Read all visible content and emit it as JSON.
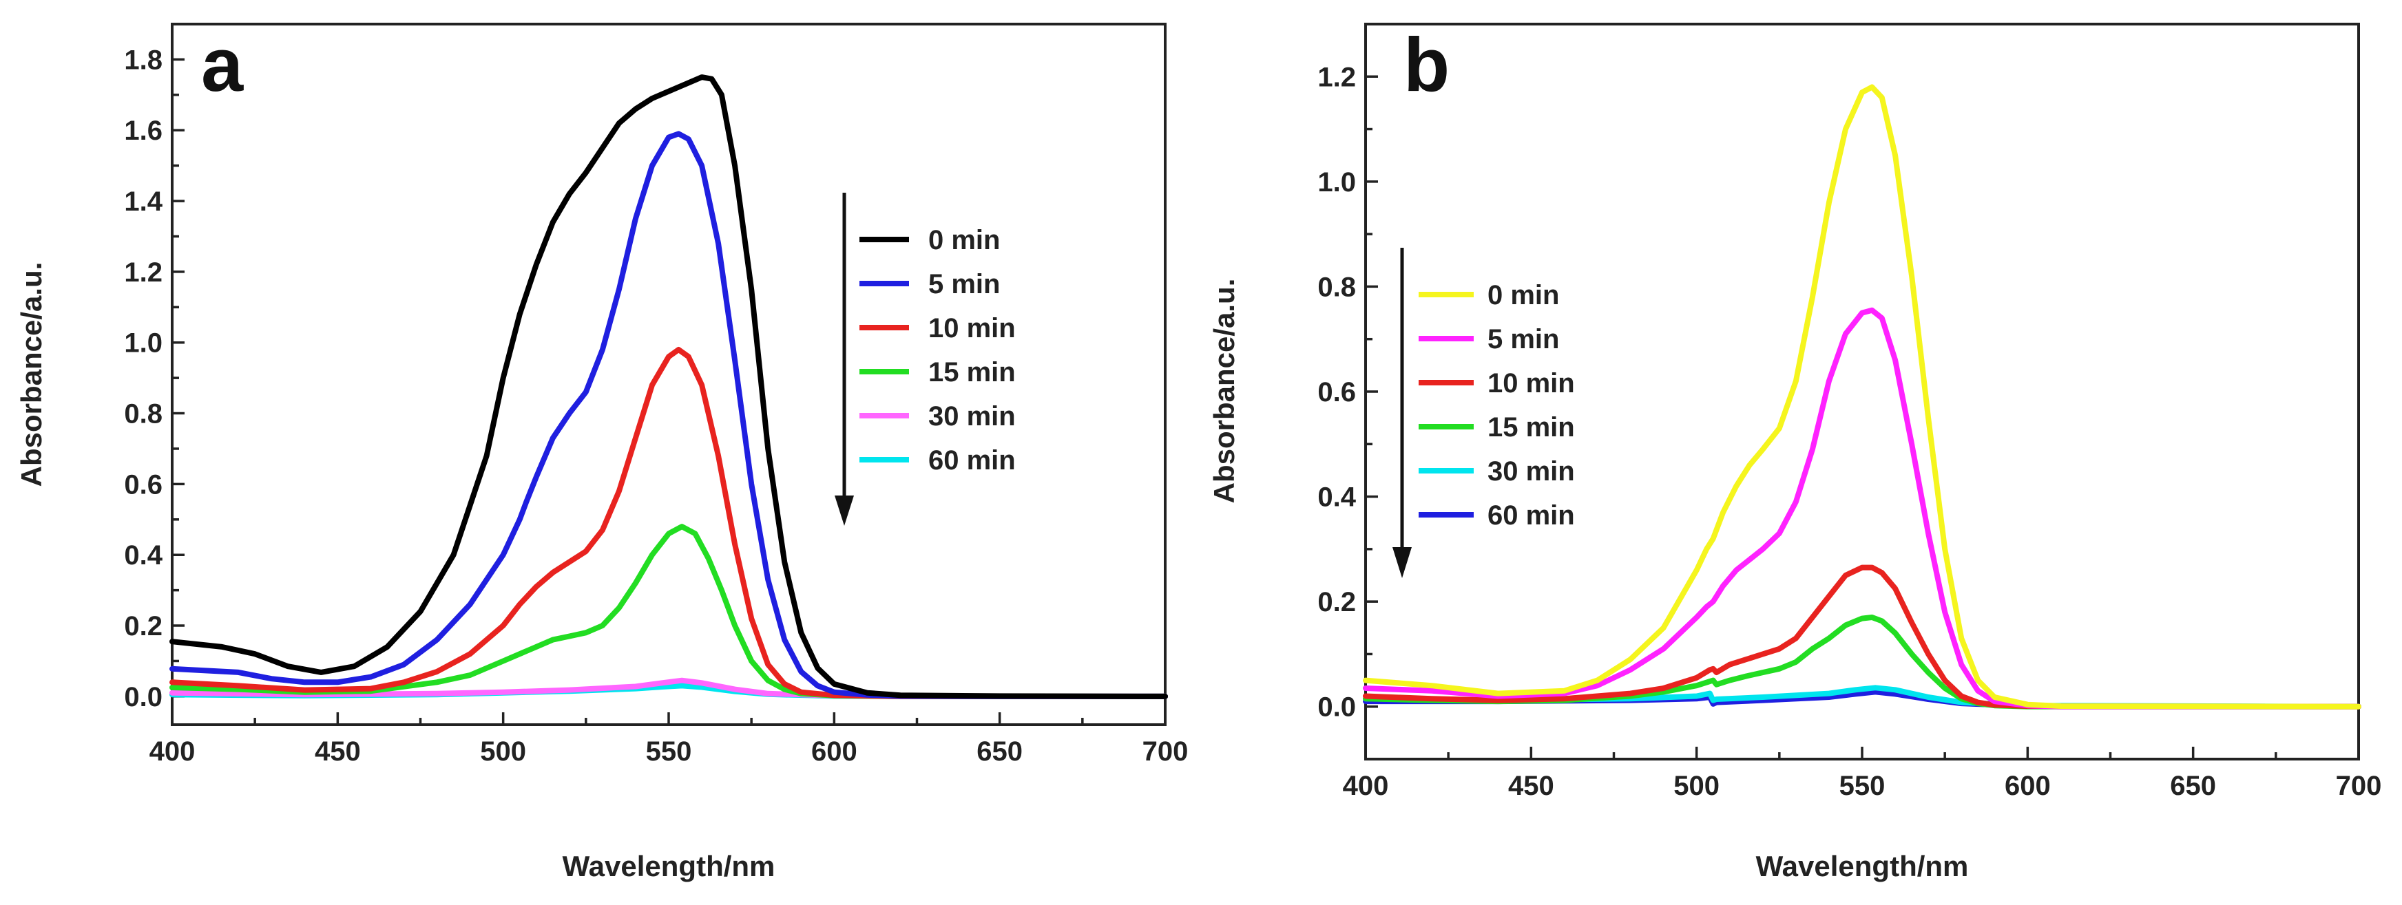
{
  "chart_data": [
    {
      "type": "line",
      "panel_label": "a",
      "xlabel": "Wavelength/nm",
      "ylabel": "Absorbance/a.u.",
      "xlim": [
        400,
        700
      ],
      "ylim": [
        -0.08,
        1.9
      ],
      "xticks": [
        400,
        450,
        500,
        550,
        600,
        650,
        700
      ],
      "yticks": [
        0.0,
        0.2,
        0.4,
        0.6,
        0.8,
        1.0,
        1.2,
        1.4,
        1.6,
        1.8
      ],
      "ytick_labels": [
        "0.0",
        "0.2",
        "0.4",
        "0.6",
        "0.8",
        "1.0",
        "1.2",
        "1.4",
        "1.6",
        "1.8"
      ],
      "grid": false,
      "legend_position": "center-right",
      "arrow": "down",
      "series": [
        {
          "name": "0 min",
          "color": "#000000",
          "x": [
            400,
            415,
            425,
            435,
            445,
            455,
            465,
            475,
            485,
            495,
            500,
            505,
            510,
            515,
            520,
            525,
            530,
            535,
            540,
            545,
            550,
            555,
            560,
            563,
            566,
            570,
            575,
            580,
            585,
            590,
            595,
            600,
            610,
            620,
            650,
            700
          ],
          "y": [
            0.155,
            0.14,
            0.12,
            0.085,
            0.068,
            0.085,
            0.14,
            0.24,
            0.4,
            0.68,
            0.9,
            1.08,
            1.22,
            1.34,
            1.42,
            1.48,
            1.55,
            1.62,
            1.66,
            1.69,
            1.71,
            1.73,
            1.75,
            1.745,
            1.7,
            1.5,
            1.15,
            0.7,
            0.38,
            0.18,
            0.08,
            0.035,
            0.01,
            0.003,
            0.001,
            0.0
          ]
        },
        {
          "name": "5 min",
          "color": "#1f1fe0",
          "x": [
            400,
            420,
            430,
            440,
            450,
            460,
            470,
            480,
            490,
            500,
            505,
            507,
            510,
            515,
            520,
            525,
            530,
            535,
            540,
            545,
            550,
            553,
            556,
            560,
            565,
            570,
            575,
            580,
            585,
            590,
            595,
            600,
            610,
            620,
            650,
            700
          ],
          "y": [
            0.078,
            0.068,
            0.05,
            0.04,
            0.04,
            0.055,
            0.09,
            0.16,
            0.26,
            0.4,
            0.5,
            0.55,
            0.62,
            0.73,
            0.8,
            0.86,
            0.98,
            1.15,
            1.35,
            1.5,
            1.58,
            1.59,
            1.575,
            1.5,
            1.28,
            0.95,
            0.6,
            0.33,
            0.16,
            0.07,
            0.03,
            0.012,
            0.004,
            0.001,
            0.0,
            0.0
          ]
        },
        {
          "name": "10 min",
          "color": "#e8231f",
          "x": [
            400,
            420,
            440,
            460,
            470,
            480,
            490,
            500,
            505,
            510,
            515,
            520,
            525,
            530,
            535,
            540,
            545,
            550,
            553,
            556,
            560,
            565,
            570,
            575,
            580,
            585,
            590,
            600,
            620,
            700
          ],
          "y": [
            0.04,
            0.03,
            0.018,
            0.022,
            0.04,
            0.07,
            0.12,
            0.2,
            0.26,
            0.31,
            0.35,
            0.38,
            0.41,
            0.47,
            0.58,
            0.73,
            0.88,
            0.96,
            0.98,
            0.96,
            0.88,
            0.68,
            0.43,
            0.22,
            0.09,
            0.035,
            0.012,
            0.003,
            0.0,
            0.0
          ]
        },
        {
          "name": "15 min",
          "color": "#22dd22",
          "x": [
            400,
            420,
            440,
            460,
            480,
            490,
            500,
            505,
            510,
            515,
            520,
            525,
            530,
            535,
            540,
            545,
            550,
            554,
            558,
            562,
            566,
            570,
            575,
            580,
            585,
            590,
            600,
            620,
            700
          ],
          "y": [
            0.025,
            0.02,
            0.012,
            0.015,
            0.04,
            0.06,
            0.1,
            0.12,
            0.14,
            0.16,
            0.17,
            0.18,
            0.2,
            0.25,
            0.32,
            0.4,
            0.46,
            0.48,
            0.46,
            0.39,
            0.3,
            0.2,
            0.1,
            0.045,
            0.02,
            0.008,
            0.002,
            0.0,
            0.0
          ]
        },
        {
          "name": "30 min",
          "color": "#ff66ff",
          "x": [
            400,
            440,
            480,
            500,
            520,
            540,
            548,
            554,
            560,
            570,
            580,
            600,
            650,
            700
          ],
          "y": [
            0.01,
            0.005,
            0.008,
            0.012,
            0.018,
            0.028,
            0.038,
            0.045,
            0.038,
            0.02,
            0.008,
            0.002,
            0.0,
            0.0
          ]
        },
        {
          "name": "60 min",
          "color": "#00e5ee",
          "x": [
            400,
            440,
            480,
            500,
            520,
            540,
            548,
            554,
            560,
            570,
            580,
            600,
            650,
            700
          ],
          "y": [
            0.005,
            0.002,
            0.005,
            0.01,
            0.015,
            0.022,
            0.027,
            0.03,
            0.026,
            0.014,
            0.006,
            0.001,
            0.0,
            0.0
          ]
        }
      ]
    },
    {
      "type": "line",
      "panel_label": "b",
      "xlabel": "Wavelength/nm",
      "ylabel": "Absorbance/a.u.",
      "xlim": [
        400,
        700
      ],
      "ylim": [
        -0.1,
        1.3
      ],
      "xticks": [
        400,
        450,
        500,
        550,
        600,
        650,
        700
      ],
      "yticks": [
        0.0,
        0.2,
        0.4,
        0.6,
        0.8,
        1.0,
        1.2
      ],
      "ytick_labels": [
        "0.0",
        "0.2",
        "0.4",
        "0.6",
        "0.8",
        "1.0",
        "1.2"
      ],
      "grid": false,
      "legend_position": "center-left",
      "arrow": "down",
      "series": [
        {
          "name": "0 min",
          "color": "#f5f51e",
          "x": [
            400,
            420,
            440,
            460,
            470,
            480,
            490,
            500,
            503,
            505,
            508,
            512,
            516,
            520,
            525,
            530,
            535,
            540,
            545,
            550,
            553,
            556,
            560,
            565,
            570,
            575,
            580,
            585,
            590,
            600,
            610,
            700
          ],
          "y": [
            0.05,
            0.04,
            0.025,
            0.03,
            0.05,
            0.09,
            0.15,
            0.26,
            0.3,
            0.32,
            0.37,
            0.42,
            0.46,
            0.49,
            0.53,
            0.62,
            0.78,
            0.96,
            1.1,
            1.17,
            1.18,
            1.16,
            1.05,
            0.82,
            0.55,
            0.3,
            0.13,
            0.05,
            0.018,
            0.004,
            0.001,
            0.0
          ]
        },
        {
          "name": "5 min",
          "color": "#ff22ff",
          "x": [
            400,
            420,
            440,
            460,
            470,
            480,
            490,
            500,
            503,
            505,
            508,
            512,
            516,
            520,
            525,
            530,
            535,
            540,
            545,
            550,
            553,
            556,
            560,
            565,
            570,
            575,
            580,
            585,
            590,
            600,
            610,
            700
          ],
          "y": [
            0.035,
            0.03,
            0.02,
            0.025,
            0.04,
            0.07,
            0.11,
            0.17,
            0.19,
            0.2,
            0.23,
            0.26,
            0.28,
            0.3,
            0.33,
            0.39,
            0.49,
            0.62,
            0.71,
            0.75,
            0.755,
            0.74,
            0.66,
            0.5,
            0.33,
            0.18,
            0.08,
            0.03,
            0.01,
            0.002,
            0.0,
            0.0
          ]
        },
        {
          "name": "10 min",
          "color": "#e8231f",
          "x": [
            400,
            420,
            440,
            460,
            480,
            490,
            500,
            504,
            505,
            506,
            510,
            515,
            520,
            525,
            530,
            535,
            540,
            545,
            550,
            553,
            556,
            560,
            565,
            570,
            575,
            580,
            585,
            590,
            600,
            700
          ],
          "y": [
            0.02,
            0.015,
            0.012,
            0.015,
            0.025,
            0.035,
            0.055,
            0.07,
            0.072,
            0.065,
            0.08,
            0.09,
            0.1,
            0.11,
            0.13,
            0.17,
            0.21,
            0.25,
            0.265,
            0.265,
            0.255,
            0.225,
            0.16,
            0.1,
            0.05,
            0.02,
            0.008,
            0.003,
            0.001,
            0.0
          ]
        },
        {
          "name": "15 min",
          "color": "#22dd22",
          "x": [
            400,
            420,
            440,
            460,
            480,
            490,
            500,
            504,
            505,
            506,
            510,
            515,
            520,
            525,
            530,
            535,
            540,
            545,
            550,
            553,
            556,
            560,
            565,
            570,
            575,
            580,
            585,
            590,
            600,
            700
          ],
          "y": [
            0.015,
            0.012,
            0.01,
            0.012,
            0.02,
            0.028,
            0.04,
            0.048,
            0.05,
            0.042,
            0.05,
            0.058,
            0.065,
            0.072,
            0.085,
            0.11,
            0.13,
            0.155,
            0.168,
            0.17,
            0.163,
            0.14,
            0.1,
            0.065,
            0.035,
            0.015,
            0.006,
            0.002,
            0.0,
            0.0
          ]
        },
        {
          "name": "30 min",
          "color": "#00e5ee",
          "x": [
            400,
            440,
            480,
            500,
            504,
            505,
            506,
            520,
            540,
            548,
            554,
            560,
            570,
            580,
            600,
            700
          ],
          "y": [
            0.015,
            0.012,
            0.015,
            0.02,
            0.025,
            0.012,
            0.014,
            0.018,
            0.025,
            0.032,
            0.036,
            0.032,
            0.018,
            0.008,
            0.002,
            0.0
          ]
        },
        {
          "name": "60 min",
          "color": "#1f1fe0",
          "x": [
            400,
            440,
            480,
            500,
            504,
            505,
            506,
            520,
            540,
            548,
            554,
            560,
            570,
            580,
            600,
            700
          ],
          "y": [
            0.01,
            0.01,
            0.012,
            0.015,
            0.018,
            0.005,
            0.008,
            0.012,
            0.018,
            0.024,
            0.028,
            0.024,
            0.014,
            0.006,
            0.001,
            0.0
          ]
        }
      ]
    }
  ]
}
